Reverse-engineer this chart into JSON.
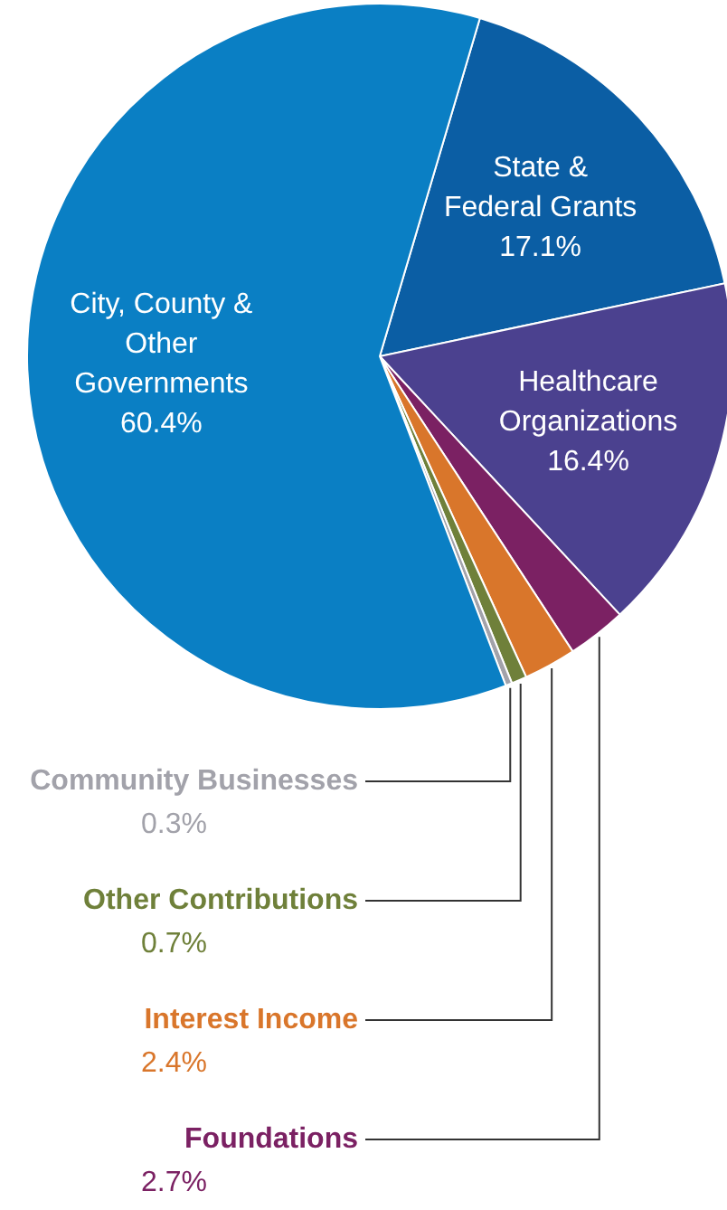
{
  "chart_data": {
    "type": "pie",
    "categories": [
      "State & Federal Grants",
      "Healthcare Organizations",
      "Foundations",
      "Interest Income",
      "Other Contributions",
      "Community Businesses",
      "City, County & Other Governments"
    ],
    "values": [
      17.1,
      16.4,
      2.7,
      2.4,
      0.7,
      0.3,
      60.4
    ],
    "value_labels": [
      "17.1%",
      "16.4%",
      "2.7%",
      "2.4%",
      "0.7%",
      "0.3%",
      "60.4%"
    ],
    "colors": [
      "#0b5ea4",
      "#4b418f",
      "#7b2163",
      "#d9762b",
      "#6f803a",
      "#a2a2aa",
      "#0a7fc4"
    ]
  }
}
